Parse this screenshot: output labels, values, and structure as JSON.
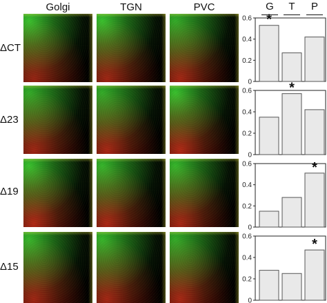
{
  "columns": [
    "Golgi",
    "TGN",
    "PVC"
  ],
  "rows": [
    "ΔCT",
    "Δ23",
    "Δ19",
    "Δ15"
  ],
  "bar_headers": [
    "G",
    "T",
    "P"
  ],
  "colors": {
    "green": "#2fd12a",
    "red": "#e0251a",
    "yellow": "#d9e23a",
    "bar_fill": "#e9e9e9",
    "bar_stroke": "#555555"
  },
  "chart_data": [
    {
      "type": "bar",
      "categories": [
        "G",
        "T",
        "P"
      ],
      "values": [
        0.53,
        0.27,
        0.42
      ],
      "star_index": 0,
      "ylim": [
        0,
        0.6
      ],
      "yticks": [
        "0",
        "0.2",
        "0.4",
        "0.6"
      ]
    },
    {
      "type": "bar",
      "categories": [
        "G",
        "T",
        "P"
      ],
      "values": [
        0.35,
        0.57,
        0.42
      ],
      "star_index": 1,
      "ylim": [
        0,
        0.6
      ],
      "yticks": [
        "0",
        "0.2",
        "0.4",
        "0.6"
      ]
    },
    {
      "type": "bar",
      "categories": [
        "G",
        "T",
        "P"
      ],
      "values": [
        0.15,
        0.28,
        0.51
      ],
      "star_index": 2,
      "ylim": [
        0,
        0.6
      ],
      "yticks": [
        "0",
        "0.2",
        "0.4",
        "0.6"
      ]
    },
    {
      "type": "bar",
      "categories": [
        "G",
        "T",
        "P"
      ],
      "values": [
        0.28,
        0.25,
        0.47
      ],
      "star_index": 2,
      "ylim": [
        0,
        0.6
      ],
      "yticks": [
        "0",
        "0.2",
        "0.4",
        "0.6"
      ]
    }
  ]
}
